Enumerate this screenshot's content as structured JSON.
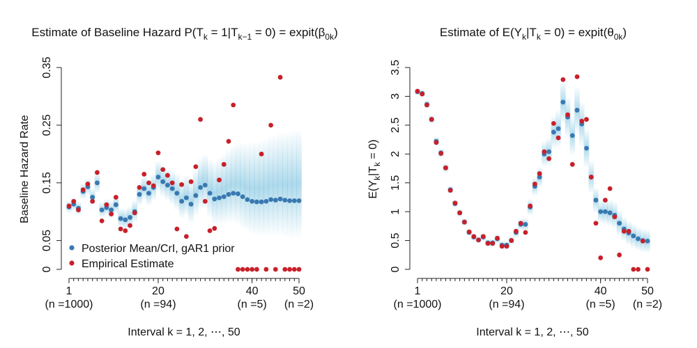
{
  "colors": {
    "posterior": "#3a78b0",
    "empirical": "#c8202a",
    "band": "#7ec3df",
    "axis": "#222222"
  },
  "x_label": "Interval k = 1, 2, ⋯, 50",
  "chart_data": [
    {
      "type": "scatter",
      "title": "Estimate of Baseline Hazard P(Tₖ = 1|Tₖ₋₁ = 0) = expit(β₀ₖ)",
      "title_parts": {
        "prefix": "Estimate of Baseline Hazard P(T",
        "s1": "k",
        "m1": " = 1|T",
        "s2": "k−1",
        "m2": " = 0) = expit(β",
        "s3": "0k",
        "suffix": ")"
      },
      "xlabel": "Interval k = 1, 2, ⋯, 50",
      "ylabel": "Baseline Hazard Rate",
      "xlim": [
        1,
        50
      ],
      "ylim": [
        0,
        0.35
      ],
      "yticks": [
        0,
        0.05,
        0.15,
        0.25,
        0.35
      ],
      "ytick_labels": [
        "0",
        "0.05",
        "0.15",
        "0.25",
        "0.35"
      ],
      "xticks": [
        1,
        20,
        40,
        50
      ],
      "xtick_labels": [
        "1",
        "20",
        "40",
        "50"
      ],
      "n_labels": [
        {
          "k": 1,
          "label": "(n =1000)"
        },
        {
          "k": 20,
          "label": "(n =94)"
        },
        {
          "k": 40,
          "label": "(n =5)"
        },
        {
          "k": 50,
          "label": "(n =2)"
        }
      ],
      "legend": {
        "position": "bottom-left",
        "entries": [
          "Posterior Mean/CrI, gAR1 prior",
          "Empirical Estimate"
        ]
      },
      "series": [
        {
          "name": "Posterior Mean/CrI, gAR1 prior",
          "x": [
            1,
            2,
            3,
            4,
            5,
            6,
            7,
            8,
            9,
            10,
            11,
            12,
            13,
            14,
            15,
            16,
            17,
            18,
            19,
            20,
            21,
            22,
            23,
            24,
            25,
            26,
            27,
            28,
            29,
            30,
            31,
            32,
            33,
            34,
            35,
            36,
            37,
            38,
            39,
            40,
            41,
            42,
            43,
            44,
            45,
            46,
            47,
            48,
            49,
            50
          ],
          "values": [
            0.108,
            0.113,
            0.106,
            0.135,
            0.143,
            0.125,
            0.15,
            0.103,
            0.107,
            0.103,
            0.112,
            0.088,
            0.086,
            0.09,
            0.1,
            0.13,
            0.14,
            0.132,
            0.142,
            0.16,
            0.152,
            0.146,
            0.14,
            0.132,
            0.118,
            0.124,
            0.113,
            0.128,
            0.142,
            0.146,
            0.132,
            0.122,
            0.124,
            0.126,
            0.13,
            0.132,
            0.131,
            0.126,
            0.121,
            0.118,
            0.117,
            0.117,
            0.118,
            0.121,
            0.12,
            0.122,
            0.12,
            0.119,
            0.119,
            0.119
          ],
          "ci_low": [
            0.098,
            0.102,
            0.094,
            0.122,
            0.129,
            0.111,
            0.133,
            0.09,
            0.093,
            0.088,
            0.096,
            0.072,
            0.069,
            0.073,
            0.082,
            0.111,
            0.12,
            0.111,
            0.12,
            0.135,
            0.126,
            0.119,
            0.112,
            0.103,
            0.089,
            0.093,
            0.08,
            0.093,
            0.104,
            0.106,
            0.09,
            0.078,
            0.078,
            0.079,
            0.081,
            0.082,
            0.079,
            0.072,
            0.066,
            0.062,
            0.06,
            0.059,
            0.059,
            0.061,
            0.059,
            0.06,
            0.058,
            0.057,
            0.056,
            0.056
          ],
          "ci_high": [
            0.119,
            0.124,
            0.118,
            0.149,
            0.158,
            0.14,
            0.168,
            0.117,
            0.122,
            0.119,
            0.129,
            0.106,
            0.105,
            0.109,
            0.12,
            0.151,
            0.162,
            0.155,
            0.166,
            0.188,
            0.181,
            0.176,
            0.172,
            0.166,
            0.154,
            0.163,
            0.156,
            0.174,
            0.193,
            0.2,
            0.191,
            0.186,
            0.193,
            0.2,
            0.208,
            0.214,
            0.218,
            0.219,
            0.218,
            0.219,
            0.221,
            0.223,
            0.226,
            0.23,
            0.232,
            0.236,
            0.236,
            0.238,
            0.24,
            0.241
          ]
        },
        {
          "name": "Empirical Estimate",
          "x": [
            1,
            2,
            3,
            4,
            5,
            6,
            7,
            8,
            9,
            10,
            11,
            12,
            13,
            14,
            15,
            16,
            17,
            18,
            19,
            20,
            21,
            22,
            23,
            24,
            25,
            26,
            27,
            28,
            29,
            30,
            31,
            32,
            33,
            34,
            35,
            36,
            37,
            38,
            39,
            40,
            41,
            42,
            43,
            44,
            45,
            46,
            47,
            48,
            49,
            50
          ],
          "values": [
            0.11,
            0.118,
            0.103,
            0.138,
            0.148,
            0.118,
            0.168,
            0.084,
            0.112,
            0.096,
            0.125,
            0.07,
            0.067,
            0.076,
            0.098,
            0.142,
            0.165,
            0.15,
            0.145,
            0.202,
            0.173,
            0.163,
            0.15,
            0.07,
            0.147,
            0.057,
            0.152,
            0.178,
            0.26,
            0.118,
            0.067,
            0.071,
            0.155,
            0.182,
            0.222,
            0.285,
            0,
            0,
            0,
            0,
            0,
            0.2,
            0,
            0.25,
            0,
            0.333,
            0,
            0,
            0,
            0
          ]
        }
      ]
    },
    {
      "type": "scatter",
      "title": "Estimate of E(Yₖ|Tₖ = 0) = expit(θ₀ₖ)",
      "title_parts": {
        "prefix": "Estimate of E(Y",
        "s1": "k",
        "m1": "|T",
        "s2": "k",
        "m2": " = 0) = expit(θ",
        "s3": "0k",
        "suffix": ")"
      },
      "xlabel": "Interval k = 1, 2, ⋯, 50",
      "ylabel": "E(Yₖ|Tₖ = 0)",
      "ylabel_parts": {
        "a": "E(Y",
        "s1": "k",
        "b": "|T",
        "s2": "k",
        "c": " = 0)"
      },
      "xlim": [
        1,
        50
      ],
      "ylim": [
        0,
        3.5
      ],
      "yticks": [
        0,
        0.5,
        1,
        1.5,
        2,
        2.5,
        3,
        3.5
      ],
      "ytick_labels": [
        "0",
        "0.5",
        "1",
        "1.5",
        "2",
        "2.5",
        "3",
        "3.5"
      ],
      "xticks": [
        1,
        20,
        40,
        50
      ],
      "xtick_labels": [
        "1",
        "20",
        "40",
        "50"
      ],
      "n_labels": [
        {
          "k": 1,
          "label": "(n =1000)"
        },
        {
          "k": 20,
          "label": "(n =94)"
        },
        {
          "k": 40,
          "label": "(n =5)"
        },
        {
          "k": 50,
          "label": "(n =2)"
        }
      ],
      "series": [
        {
          "name": "Posterior Mean/CrI",
          "x": [
            1,
            2,
            3,
            4,
            5,
            6,
            7,
            8,
            9,
            10,
            11,
            12,
            13,
            14,
            15,
            16,
            17,
            18,
            19,
            20,
            21,
            22,
            23,
            24,
            25,
            26,
            27,
            28,
            29,
            30,
            31,
            32,
            33,
            34,
            35,
            36,
            37,
            38,
            39,
            40,
            41,
            42,
            43,
            44,
            45,
            46,
            47,
            48,
            49,
            50
          ],
          "values": [
            3.08,
            3.05,
            2.86,
            2.6,
            2.22,
            2.02,
            1.76,
            1.38,
            1.14,
            0.98,
            0.82,
            0.64,
            0.56,
            0.51,
            0.56,
            0.46,
            0.46,
            0.53,
            0.42,
            0.42,
            0.5,
            0.64,
            0.78,
            0.78,
            1.08,
            1.44,
            1.6,
            2.0,
            2.04,
            2.38,
            2.44,
            2.9,
            2.64,
            2.32,
            2.76,
            2.52,
            2.1,
            1.6,
            1.2,
            1.0,
            1.0,
            0.98,
            0.94,
            0.8,
            0.7,
            0.63,
            0.58,
            0.53,
            0.5,
            0.49
          ],
          "ci_low": [
            3.02,
            2.99,
            2.79,
            2.52,
            2.14,
            1.94,
            1.68,
            1.31,
            1.07,
            0.91,
            0.75,
            0.58,
            0.5,
            0.45,
            0.49,
            0.39,
            0.39,
            0.45,
            0.35,
            0.35,
            0.42,
            0.55,
            0.68,
            0.67,
            0.94,
            1.28,
            1.42,
            1.78,
            1.8,
            2.1,
            2.12,
            2.52,
            2.28,
            1.98,
            2.36,
            2.14,
            1.76,
            1.32,
            0.98,
            0.8,
            0.78,
            0.75,
            0.71,
            0.58,
            0.49,
            0.42,
            0.37,
            0.33,
            0.3,
            0.29
          ],
          "ci_high": [
            3.14,
            3.11,
            2.93,
            2.68,
            2.3,
            2.1,
            1.84,
            1.45,
            1.21,
            1.05,
            0.89,
            0.7,
            0.62,
            0.57,
            0.63,
            0.53,
            0.53,
            0.61,
            0.49,
            0.49,
            0.58,
            0.73,
            0.88,
            0.89,
            1.22,
            1.6,
            1.78,
            2.22,
            2.28,
            2.66,
            2.76,
            3.28,
            3.0,
            2.66,
            3.16,
            2.9,
            2.44,
            1.88,
            1.42,
            1.2,
            1.22,
            1.21,
            1.17,
            1.02,
            0.91,
            0.84,
            0.79,
            0.73,
            0.7,
            0.69
          ]
        },
        {
          "name": "Empirical Estimate",
          "x": [
            1,
            2,
            3,
            4,
            5,
            6,
            7,
            8,
            9,
            10,
            11,
            12,
            13,
            14,
            15,
            16,
            17,
            18,
            19,
            20,
            21,
            22,
            23,
            24,
            25,
            26,
            27,
            28,
            29,
            30,
            31,
            32,
            33,
            34,
            35,
            36,
            37,
            38,
            39,
            40,
            41,
            42,
            43,
            44,
            45,
            46,
            47,
            48,
            49,
            50
          ],
          "values": [
            3.09,
            3.04,
            2.85,
            2.6,
            2.2,
            2.01,
            1.76,
            1.37,
            1.15,
            0.98,
            0.82,
            0.65,
            0.57,
            0.51,
            0.57,
            0.45,
            0.45,
            0.54,
            0.4,
            0.4,
            0.5,
            0.66,
            0.8,
            0.64,
            1.1,
            1.48,
            1.66,
            2.04,
            1.92,
            2.53,
            2.28,
            3.29,
            2.68,
            1.82,
            3.34,
            2.57,
            2.6,
            1.6,
            0.8,
            0.2,
            1.2,
            1.4,
            0.91,
            0.25,
            0.66,
            0.66,
            0,
            0,
            0.49,
            0
          ]
        }
      ]
    }
  ]
}
